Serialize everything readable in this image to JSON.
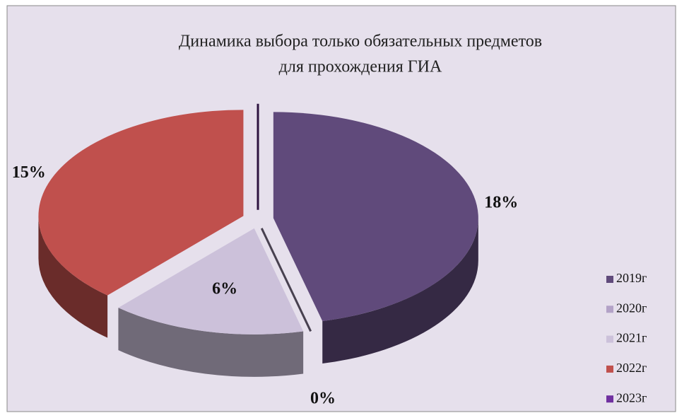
{
  "chart_data": {
    "type": "pie",
    "title": "Динамика  выбора только обязательных предметов",
    "subtitle": "для прохождения ГИА",
    "categories": [
      "2019г",
      "2020г",
      "2021г",
      "2022г",
      "2023г"
    ],
    "values": [
      18,
      0,
      6,
      15,
      0
    ],
    "value_labels": [
      "18%",
      "0%",
      "6%",
      "15%",
      null
    ],
    "colors": [
      "#604a7b",
      "#b3a2c7",
      "#ccc1da",
      "#c0504d",
      "#7030a0"
    ],
    "legend": "right"
  }
}
